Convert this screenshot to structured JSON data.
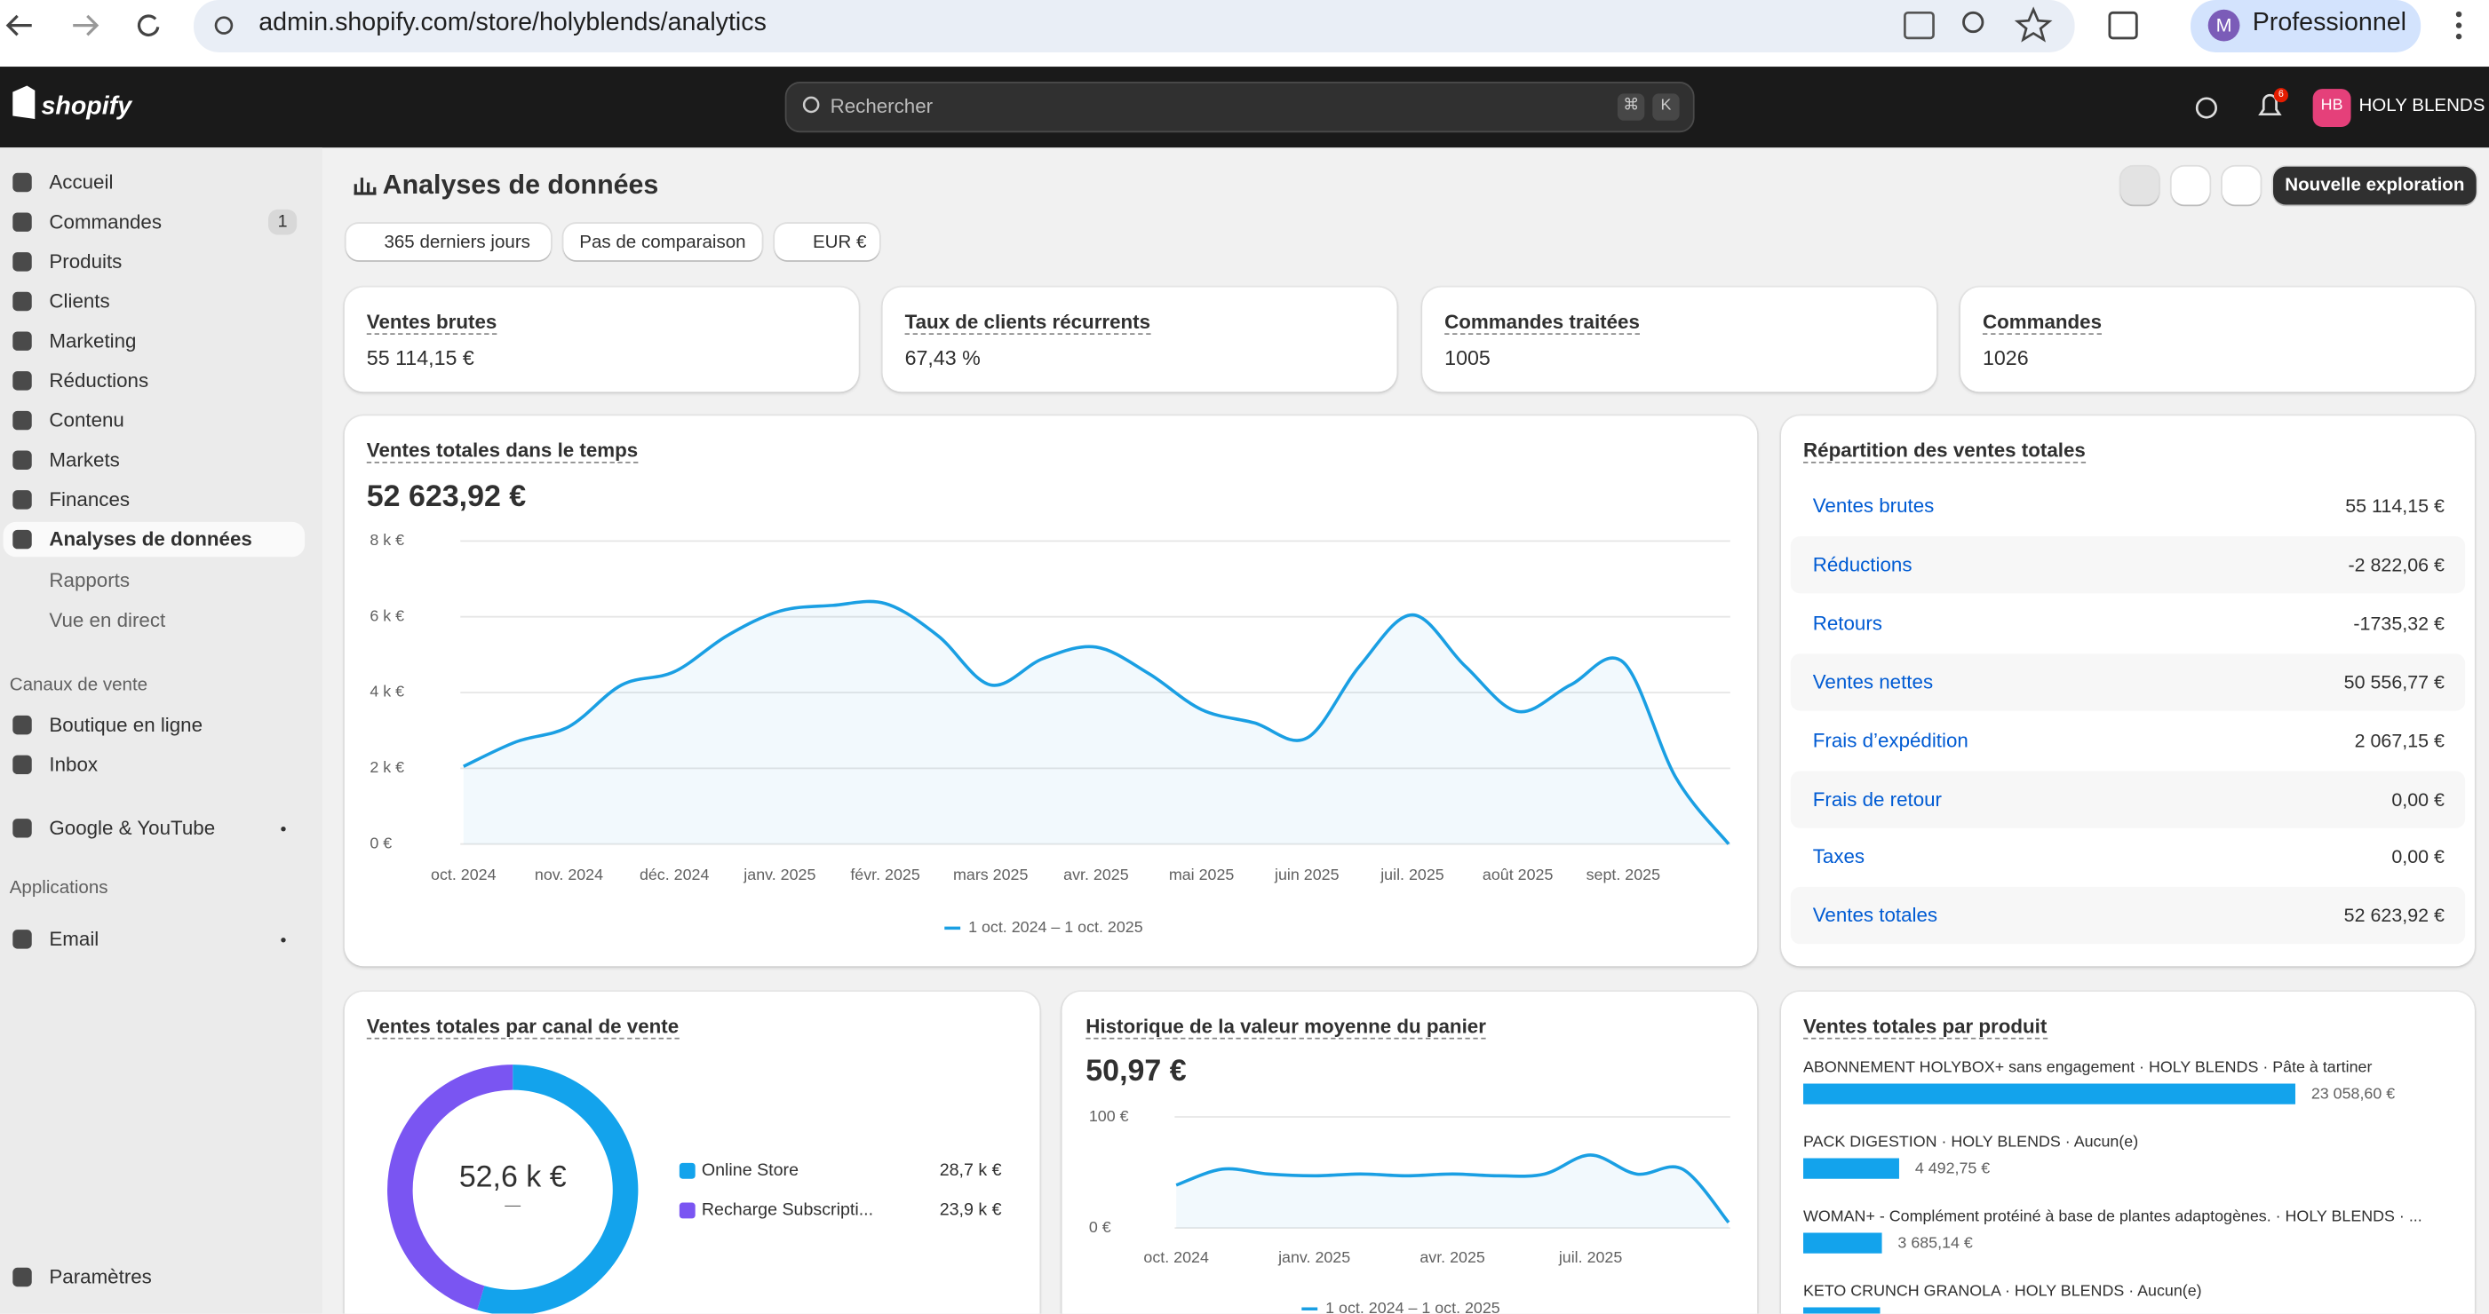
{
  "browser": {
    "url": "admin.shopify.com/store/holyblends/analytics",
    "avatar": "M",
    "profile": "Professionnel"
  },
  "header": {
    "logo": "shopify",
    "search": "Rechercher",
    "keys": [
      "⌘",
      "K"
    ],
    "notifications": "6",
    "store_initials": "HB",
    "store": "HOLY BLENDS"
  },
  "sidebar": {
    "nav": [
      {
        "label": "Accueil"
      },
      {
        "label": "Commandes",
        "badge": "1"
      },
      {
        "label": "Produits"
      },
      {
        "label": "Clients"
      },
      {
        "label": "Marketing"
      },
      {
        "label": "Réductions"
      },
      {
        "label": "Contenu"
      },
      {
        "label": "Markets"
      },
      {
        "label": "Finances"
      },
      {
        "label": "Analyses de données"
      }
    ],
    "sub": [
      "Rapports",
      "Vue en direct"
    ],
    "channels_heading": "Canaux de vente",
    "channels": [
      "Boutique en ligne",
      "Inbox"
    ],
    "google": "Google & YouTube",
    "apps_heading": "Applications",
    "apps": [
      "Email"
    ],
    "settings": "Paramètres"
  },
  "page": {
    "title": "Analyses de données",
    "filters": [
      "365 derniers jours",
      "Pas de comparaison",
      "EUR €"
    ],
    "new_button": "Nouvelle exploration"
  },
  "kpis": [
    {
      "label": "Ventes brutes",
      "value": "55 114,15 €"
    },
    {
      "label": "Taux de clients récurrents",
      "value": "67,43 %"
    },
    {
      "label": "Commandes traitées",
      "value": "1005"
    },
    {
      "label": "Commandes",
      "value": "1026"
    }
  ],
  "breakdown": {
    "title": "Répartition des ventes totales",
    "rows": [
      [
        "Ventes brutes",
        "55 114,15 €"
      ],
      [
        "Réductions",
        "-2 822,06 €"
      ],
      [
        "Retours",
        "-1735,32 €"
      ],
      [
        "Ventes nettes",
        "50 556,77 €"
      ],
      [
        "Frais d’expédition",
        "2 067,15 €"
      ],
      [
        "Frais de retour",
        "0,00 €"
      ],
      [
        "Taxes",
        "0,00 €"
      ],
      [
        "Ventes totales",
        "52 623,92 €"
      ]
    ]
  },
  "chart_data": [
    {
      "type": "line",
      "title": "Ventes totales dans le temps",
      "total": "52 623,92 €",
      "color": "#1a9fe3",
      "grid": true,
      "categories": [
        "oct. 2024",
        null,
        "nov. 2024",
        null,
        "déc. 2024",
        null,
        "janv. 2025",
        null,
        "févr. 2025",
        null,
        "mars 2025",
        null,
        "avr. 2025",
        null,
        "mai 2025",
        null,
        "juin 2025",
        null,
        "juil. 2025",
        null,
        "août 2025",
        null,
        "sept. 2025",
        null,
        null
      ],
      "series": [
        {
          "name": "1 oct. 2024 – 1 oct. 2025",
          "color": "#1a9fe3",
          "values": [
            2050,
            2700,
            3100,
            4200,
            4550,
            5500,
            6150,
            6300,
            6350,
            5500,
            4200,
            4900,
            5200,
            4500,
            3550,
            3200,
            2800,
            4700,
            6050,
            4700,
            3500,
            4200,
            4800,
            1750,
            0
          ]
        }
      ],
      "ylim": [
        0,
        8000
      ],
      "yticks": [
        {
          "value": 0,
          "label": "0 €"
        },
        {
          "value": 2000,
          "label": "2 k €"
        },
        {
          "value": 4000,
          "label": "4 k €"
        },
        {
          "value": 6000,
          "label": "6 k €"
        },
        {
          "value": 8000,
          "label": "8 k €"
        }
      ]
    },
    {
      "type": "line",
      "title": "Historique de la valeur moyenne du panier",
      "total": "50,97 €",
      "color": "#1a9fe3",
      "grid": true,
      "categories": [
        "oct. 2024",
        null,
        null,
        "janv. 2025",
        null,
        null,
        "avr. 2025",
        null,
        null,
        "juil. 2025",
        null,
        null,
        null
      ],
      "series": [
        {
          "name": "1 oct. 2024 – 1 oct. 2025",
          "color": "#1a9fe3",
          "values": [
            38.6,
            53,
            48.6,
            47,
            48.6,
            47,
            48.6,
            47,
            48.6,
            65.7,
            48.6,
            53,
            5
          ]
        }
      ],
      "ylim": [
        0,
        100
      ],
      "yticks": [
        {
          "value": 0,
          "label": "0 €"
        },
        {
          "value": 100,
          "label": "100 €"
        }
      ]
    },
    {
      "type": "pie",
      "title": "Ventes totales par canal de vente",
      "center_label": "52,6 k €",
      "center_sub": "—",
      "categories": [
        "Online Store",
        "Recharge Subscripti..."
      ],
      "values": [
        28700,
        23900
      ],
      "value_labels": [
        "28,7 k €",
        "23,9 k €"
      ],
      "colors": [
        "#13a3ec",
        "#7a55f2"
      ]
    },
    {
      "type": "hbar",
      "title": "Ventes totales par produit",
      "color": "#13a3ec",
      "categories": [
        "ABONNEMENT HOLYBOX+ sans engagement · HOLY BLENDS · Pâte à tartiner",
        "PACK DIGESTION · HOLY BLENDS · Aucun(e)",
        "WOMAN+ - Complément protéiné à base de plantes adaptogènes. · HOLY BLENDS · ...",
        "KETO CRUNCH GRANOLA · HOLY BLENDS · Aucun(e)"
      ],
      "values": [
        23058.6,
        4492.75,
        3685.14,
        3600
      ],
      "value_labels": [
        "23 058,60 €",
        "4 492,75 €",
        "3 685,14 €",
        null
      ]
    }
  ]
}
